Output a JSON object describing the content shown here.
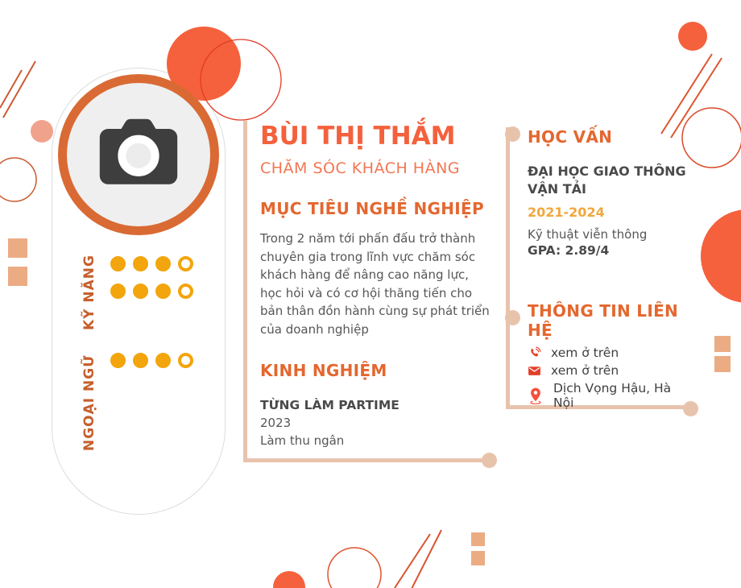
{
  "profile": {
    "name": "BÙI THỊ THẮM",
    "title": "CHĂM SÓC KHÁCH HÀNG"
  },
  "objective": {
    "heading": "MỤC TIÊU NGHỀ NGHIỆP",
    "body": "Trong 2 năm tới phấn đấu trở thành chuyên gia trong lĩnh vực chăm sóc khách hàng để nâng cao năng lực, học hỏi và có cơ hội thăng tiến cho bản thân đồn hành cùng sự phát triển của doanh nghiệp"
  },
  "experience": {
    "heading": "KINH NGHIỆM",
    "items": [
      {
        "title": "TỪNG LÀM PARTIME",
        "period": "2023",
        "description": "Làm thu ngân"
      }
    ]
  },
  "education": {
    "heading": "HỌC VẤN",
    "school": "ĐẠI HỌC GIAO THÔNG VẬN TẢI",
    "period": "2021-2024",
    "major": "Kỹ thuật viễn thông",
    "gpa": "GPA: 2.89/4"
  },
  "contact": {
    "heading": "THÔNG TIN LIÊN HỆ",
    "items": [
      {
        "icon": "phone-icon",
        "text": "xem ở trên"
      },
      {
        "icon": "mail-icon",
        "text": "xem ở trên"
      },
      {
        "icon": "location-icon",
        "text": "Dịch Vọng Hậu, Hà Nội"
      }
    ]
  },
  "skills": {
    "heading": "KỸ NĂNG",
    "rows": [
      {
        "filled": 3,
        "total": 4
      },
      {
        "filled": 3,
        "total": 4
      }
    ]
  },
  "languages": {
    "heading": "NGOẠI NGỮ",
    "rows": [
      {
        "filled": 3,
        "total": 4
      }
    ]
  },
  "colors": {
    "accent_tomato": "#F4613C",
    "accent_orange_heading": "#E4672F",
    "accent_amber_dots": "#F2A50C",
    "accent_year": "#F0A73E",
    "line_tan": "#E8C3AC",
    "square_tan": "#EBAC84",
    "photo_ring": "#D96A34",
    "icon_red": "#E1402A"
  }
}
